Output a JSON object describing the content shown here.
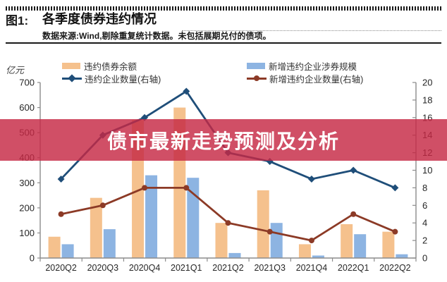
{
  "header": {
    "figure_label": "图1:",
    "title": "各季度债券违约情况",
    "source_note": "数据来源:Wind,剔除重复统计数据。未包括展期兑付的债项。"
  },
  "banner": {
    "text": "债市最新走势预测及分析",
    "overlay_rgba": "rgba(198,40,68,0.82)"
  },
  "chart_data": {
    "type": "bar+line",
    "categories": [
      "2020Q2",
      "2020Q3",
      "2020Q4",
      "2021Q1",
      "2021Q2",
      "2021Q3",
      "2021Q4",
      "2022Q1",
      "2022Q2"
    ],
    "series": [
      {
        "name": "违约债券余额",
        "type": "bar",
        "axis": "left",
        "color": "#F5C18D",
        "values": [
          85,
          240,
          550,
          600,
          140,
          270,
          55,
          135,
          105
        ]
      },
      {
        "name": "新增违约企业涉券规模",
        "type": "bar",
        "axis": "left",
        "color": "#8DB4E2",
        "values": [
          55,
          115,
          330,
          320,
          20,
          140,
          10,
          95,
          15
        ]
      },
      {
        "name": "违约企业数量(右轴)",
        "type": "line",
        "axis": "right",
        "color": "#1F4E79",
        "marker": "diamond",
        "values": [
          9,
          14,
          16,
          19,
          12,
          11,
          9,
          10,
          8
        ]
      },
      {
        "name": "新增违约企业数量(右轴)",
        "type": "line",
        "axis": "right",
        "color": "#8C3A26",
        "marker": "circle",
        "values": [
          5,
          6,
          8,
          8,
          4,
          3,
          2,
          5,
          3
        ]
      }
    ],
    "left_axis": {
      "label": "亿元",
      "min": 0,
      "max": 700,
      "step": 100
    },
    "right_axis": {
      "label": "",
      "min": 0,
      "max": 20,
      "step": 2
    },
    "grid": false,
    "legend_position": "top"
  }
}
